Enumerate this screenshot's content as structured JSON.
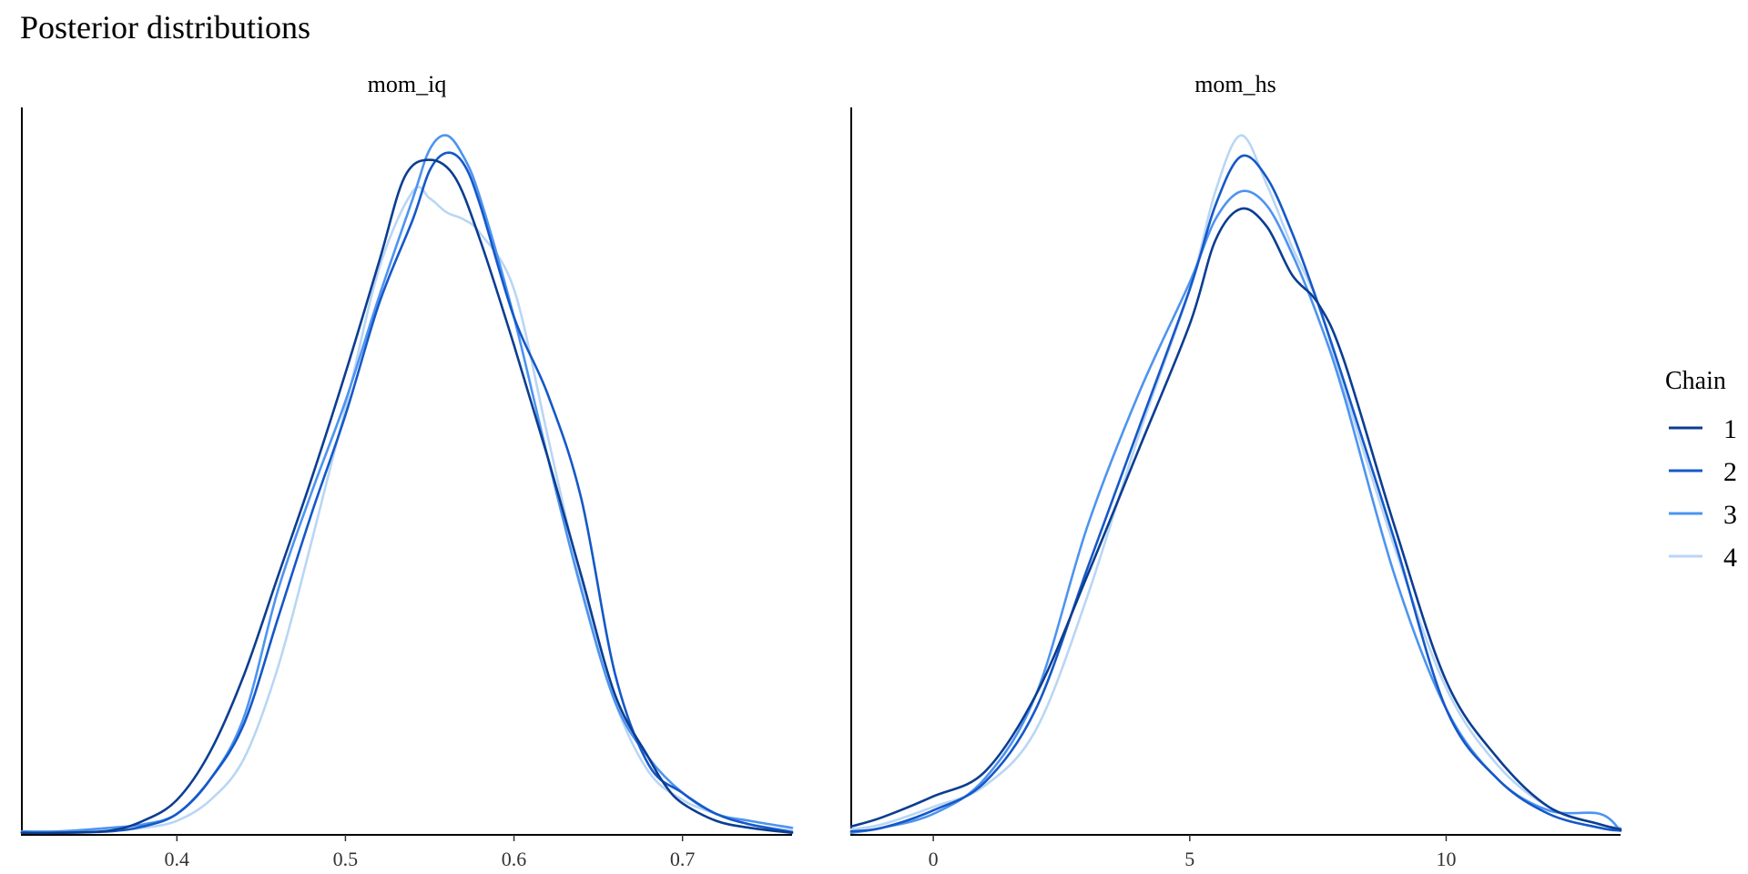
{
  "title": "Posterior distributions",
  "legend": {
    "title": "Chain",
    "entries": [
      "1",
      "2",
      "3",
      "4"
    ]
  },
  "colors": {
    "1": "#0b3d91",
    "2": "#1558c8",
    "3": "#4d94f0",
    "4": "#b9d6f4"
  },
  "chart_data": [
    {
      "type": "line",
      "panel_title": "mom_iq",
      "xlim": [
        0.308,
        0.765
      ],
      "x_ticks": [
        0.4,
        0.5,
        0.6,
        0.7
      ],
      "x_tick_labels": [
        "0.4",
        "0.5",
        "0.6",
        "0.7"
      ],
      "ylabel": "",
      "y_ticks": [],
      "grid": false,
      "series": [
        {
          "name": "1",
          "x": [
            0.308,
            0.33,
            0.36,
            0.38,
            0.4,
            0.42,
            0.44,
            0.46,
            0.48,
            0.5,
            0.52,
            0.535,
            0.55,
            0.565,
            0.58,
            0.6,
            0.62,
            0.64,
            0.66,
            0.68,
            0.69,
            0.7,
            0.72,
            0.74,
            0.765
          ],
          "y": [
            0.3,
            0.3,
            0.6,
            2,
            5,
            12,
            23,
            37,
            51,
            66,
            82,
            94,
            96.5,
            94,
            85,
            70,
            54,
            37,
            20,
            11,
            7,
            4.5,
            2,
            1,
            0.3
          ]
        },
        {
          "name": "2",
          "x": [
            0.308,
            0.33,
            0.36,
            0.38,
            0.4,
            0.42,
            0.44,
            0.46,
            0.48,
            0.5,
            0.52,
            0.54,
            0.55,
            0.56,
            0.57,
            0.58,
            0.6,
            0.62,
            0.64,
            0.66,
            0.68,
            0.7,
            0.72,
            0.74,
            0.765
          ],
          "y": [
            0.3,
            0.3,
            0.5,
            1.2,
            3,
            8,
            16,
            31,
            46,
            60,
            76,
            88,
            95,
            97.5,
            96,
            90,
            74,
            63,
            48,
            23,
            10,
            6,
            3,
            1.5,
            0.4
          ]
        },
        {
          "name": "3",
          "x": [
            0.308,
            0.33,
            0.36,
            0.38,
            0.4,
            0.42,
            0.44,
            0.46,
            0.48,
            0.5,
            0.52,
            0.54,
            0.55,
            0.56,
            0.57,
            0.58,
            0.6,
            0.62,
            0.64,
            0.66,
            0.68,
            0.7,
            0.72,
            0.74,
            0.765
          ],
          "y": [
            0.5,
            0.5,
            1,
            1.5,
            3,
            8,
            17,
            35,
            49,
            62,
            77,
            91,
            98,
            100,
            97,
            91,
            74,
            54,
            35,
            19,
            11,
            6,
            3,
            2,
            1
          ]
        },
        {
          "name": "4",
          "x": [
            0.308,
            0.33,
            0.36,
            0.38,
            0.4,
            0.42,
            0.44,
            0.46,
            0.48,
            0.5,
            0.52,
            0.54,
            0.55,
            0.56,
            0.57,
            0.58,
            0.6,
            0.62,
            0.64,
            0.66,
            0.68,
            0.7,
            0.72,
            0.74,
            0.765
          ],
          "y": [
            0.4,
            0.4,
            0.6,
            1,
            2,
            5,
            11,
            24,
            42,
            61,
            81,
            92,
            91,
            89,
            88,
            86,
            78,
            57,
            36,
            19,
            9,
            5,
            3,
            1.5,
            0.6
          ]
        }
      ]
    },
    {
      "type": "line",
      "panel_title": "mom_hs",
      "xlim": [
        -1.6,
        13.4
      ],
      "x_ticks": [
        0,
        5,
        10
      ],
      "x_tick_labels": [
        "0",
        "5",
        "10"
      ],
      "ylabel": "",
      "y_ticks": [],
      "grid": false,
      "series": [
        {
          "name": "1",
          "x": [
            -1.6,
            -1,
            0,
            1,
            2,
            3,
            4,
            5,
            5.5,
            6,
            6.5,
            7,
            7.5,
            8,
            9,
            10,
            11,
            12,
            13,
            13.4
          ],
          "y": [
            1.2,
            2.5,
            5.5,
            9,
            20,
            37,
            55,
            73,
            85,
            89.5,
            87,
            80,
            76,
            68,
            44,
            22,
            11,
            4,
            1.5,
            0.8
          ]
        },
        {
          "name": "2",
          "x": [
            -1.6,
            -1,
            0,
            1,
            2,
            3,
            4,
            5,
            5.5,
            6,
            6.5,
            7,
            7.5,
            8,
            9,
            10,
            11,
            12,
            13,
            13.4
          ],
          "y": [
            0.5,
            1,
            3.5,
            7.5,
            18,
            38,
            58,
            78,
            90,
            97,
            94,
            86,
            76,
            65,
            42,
            18,
            8,
            3,
            1,
            0.6
          ]
        },
        {
          "name": "3",
          "x": [
            -1.6,
            -1,
            0,
            1,
            2,
            3,
            4,
            5,
            5.5,
            6,
            6.5,
            7,
            7.5,
            8,
            9,
            10,
            11,
            12,
            13,
            13.4
          ],
          "y": [
            0.3,
            1,
            3,
            8,
            20,
            44,
            63,
            79,
            88,
            92,
            90,
            83,
            74,
            63,
            37,
            18,
            8,
            3.5,
            3,
            0.6
          ]
        },
        {
          "name": "4",
          "x": [
            -1.6,
            -1,
            0,
            1,
            2,
            3,
            4,
            5,
            5.5,
            6,
            6.5,
            7,
            7.5,
            8,
            9,
            10,
            11,
            12,
            13,
            13.4
          ],
          "y": [
            0.8,
            1.5,
            4,
            7,
            15,
            34,
            57,
            78,
            92,
            100,
            93,
            84,
            76,
            64,
            41,
            21,
            10,
            4,
            1.5,
            1
          ]
        }
      ]
    }
  ]
}
